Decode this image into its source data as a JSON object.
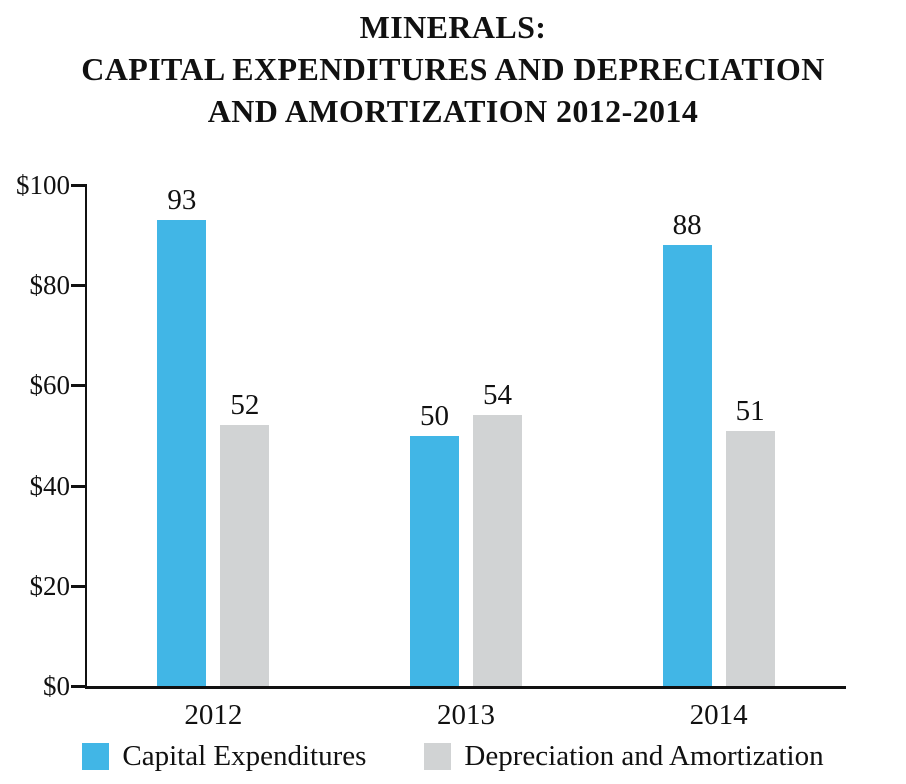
{
  "title": {
    "line1": "MINERALS:",
    "line2": "CAPITAL EXPENDITURES AND DEPRECIATION",
    "line3": "AND AMORTIZATION 2012-2014"
  },
  "chart_data": {
    "type": "bar",
    "title": "MINERALS: CAPITAL EXPENDITURES AND DEPRECIATION AND AMORTIZATION 2012-2014",
    "categories": [
      "2012",
      "2013",
      "2014"
    ],
    "series": [
      {
        "name": "Capital Expenditures",
        "color": "#41b6e6",
        "values": [
          93,
          50,
          88
        ]
      },
      {
        "name": "Depreciation and Amortization",
        "color": "#d1d3d4",
        "values": [
          52,
          54,
          51
        ]
      }
    ],
    "y_ticks": [
      {
        "label": "$0",
        "value": 0
      },
      {
        "label": "$20",
        "value": 20
      },
      {
        "label": "$40",
        "value": 40
      },
      {
        "label": "$60",
        "value": 60
      },
      {
        "label": "$80",
        "value": 80
      },
      {
        "label": "$100",
        "value": 100
      }
    ],
    "ylim": [
      0,
      100
    ],
    "grid": false,
    "value_labels": true,
    "legend_position": "bottom",
    "xlabel": "",
    "ylabel": ""
  }
}
